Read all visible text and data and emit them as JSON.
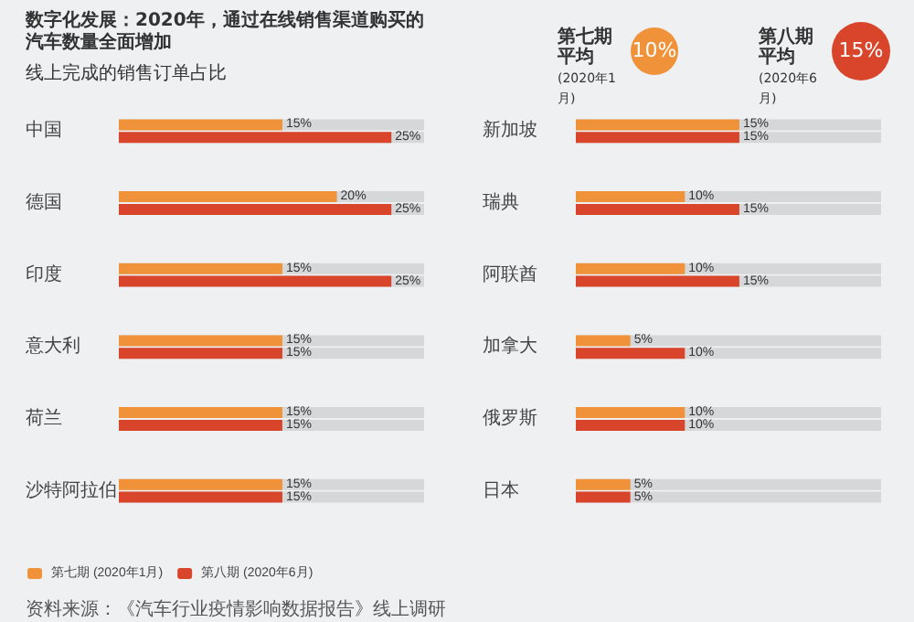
{
  "chart_data": [
    {
      "type": "bar",
      "orientation": "horizontal",
      "title": "数字化发展：2020年，通过在线销售渠道购买的汽车数量全面增加",
      "subtitle": "线上完成的销售订单占比",
      "categories": [
        "中国",
        "德国",
        "印度",
        "意大利",
        "荷兰",
        "沙特阿拉伯"
      ],
      "series": [
        {
          "name": "第七期 (2020年1月)",
          "color": "#f0923a",
          "values": [
            15,
            20,
            15,
            15,
            15,
            15
          ],
          "value_labels": [
            "15%",
            "20%",
            "15%",
            "15%",
            "15%",
            "15%"
          ]
        },
        {
          "name": "第八期 (2020年6月)",
          "color": "#d9452b",
          "values": [
            25,
            25,
            25,
            15,
            15,
            15
          ],
          "value_labels": [
            "25%",
            "25%",
            "25%",
            "15%",
            "15%",
            "15%"
          ]
        }
      ],
      "xlim": [
        0,
        28
      ],
      "tick_labels": "y",
      "legend": "bottom left",
      "annotations": [
        "资料来源：《汽车行业疫情影响数据报告》线上调研"
      ]
    },
    {
      "type": "bar",
      "orientation": "horizontal",
      "categories": [
        "新加坡",
        "瑞典",
        "阿联酋",
        "加拿大",
        "俄罗斯",
        "日本"
      ],
      "series": [
        {
          "color": "#f0923a",
          "values": [
            15,
            10,
            10,
            5,
            10,
            5
          ],
          "value_labels": [
            "15%",
            "10%",
            "10%",
            "5%",
            "10%",
            "5%"
          ]
        },
        {
          "color": "#d9452b",
          "values": [
            15,
            15,
            15,
            10,
            10,
            5
          ],
          "value_labels": [
            "15%",
            "15%",
            "15%",
            "10%",
            "10%",
            "5%"
          ]
        }
      ],
      "xlim": [
        0,
        28
      ],
      "tick_labels": "y",
      "legend": false,
      "annotations": [
        "第七期平均",
        "(2020年1月)",
        "10%",
        "第八期平均",
        "(2020年6月)",
        "15%"
      ]
    }
  ]
}
